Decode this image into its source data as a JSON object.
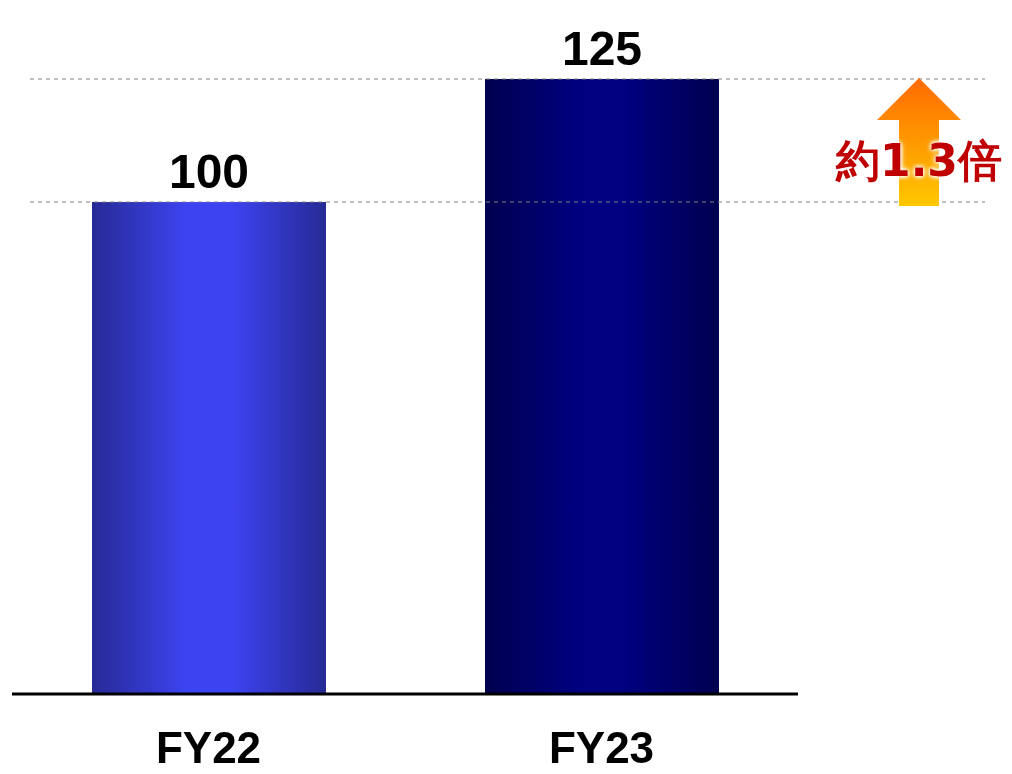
{
  "chart_data": {
    "type": "bar",
    "categories": [
      "FY22",
      "FY23"
    ],
    "values": [
      100,
      125
    ],
    "colors": [
      "#3d43f0",
      "#000080"
    ],
    "data_labels": true,
    "ref_lines": [
      {
        "axis": "y",
        "value": 100,
        "color": "#808080",
        "line_style": "dashed"
      },
      {
        "axis": "y",
        "value": 125,
        "color": "#808080",
        "line_style": "dashed"
      }
    ],
    "annotations": [
      "約1.3倍"
    ]
  }
}
